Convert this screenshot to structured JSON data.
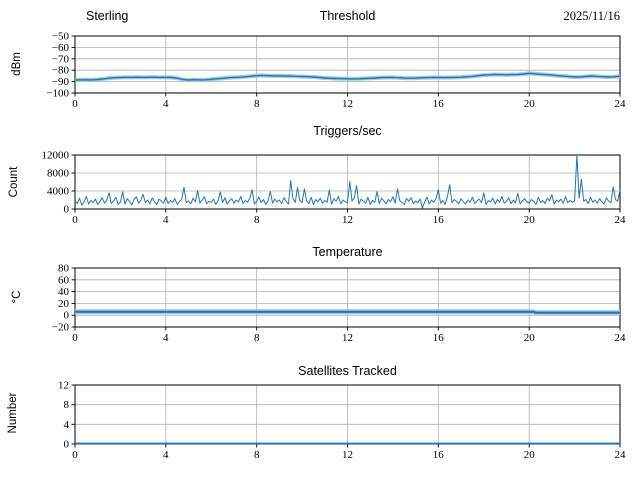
{
  "figure": {
    "background": "#ffffff",
    "grid_color": "#b0b0b0",
    "spine_color": "#000000"
  },
  "chart_data": [
    {
      "id": "threshold",
      "type": "line",
      "title_left": "Sterling",
      "title_center": "Threshold",
      "title_right": "2025/11/16",
      "ylabel": "dBm",
      "xlim": [
        0,
        24
      ],
      "ylim": [
        -100,
        -50
      ],
      "xticks": [
        0,
        4,
        8,
        12,
        16,
        20,
        24
      ],
      "xtick_labels": [
        "0",
        "4",
        "8",
        "12",
        "16",
        "20",
        "24"
      ],
      "ytick_vals": [
        -50,
        -60,
        -70,
        -80,
        -90,
        -100
      ],
      "ytick_labels": [
        "−50",
        "−60",
        "−70",
        "−80",
        "−90",
        "−100"
      ],
      "grid": true,
      "legend": "none",
      "line_color": "#1f77b4",
      "band_color": "#a5c9e1",
      "series": [
        {
          "name": "threshold_dbm",
          "x_start": 0,
          "x_step": 0.25,
          "width": 1.4,
          "band": 4,
          "values": [
            -88.6,
            -88.5,
            -88.4,
            -88.5,
            -88.2,
            -87.6,
            -87.0,
            -86.6,
            -86.4,
            -86.2,
            -86.3,
            -86.1,
            -86.3,
            -86.2,
            -86.1,
            -86.3,
            -86.2,
            -86.4,
            -87.0,
            -88.2,
            -88.6,
            -88.3,
            -88.5,
            -88.4,
            -88.0,
            -87.5,
            -87.1,
            -86.6,
            -86.3,
            -86.1,
            -85.8,
            -85.3,
            -84.8,
            -84.6,
            -84.8,
            -85.0,
            -84.9,
            -85.1,
            -85.2,
            -85.4,
            -85.5,
            -85.7,
            -86.0,
            -86.4,
            -86.8,
            -87.1,
            -87.3,
            -87.4,
            -87.5,
            -87.6,
            -87.5,
            -87.3,
            -87.1,
            -86.8,
            -86.5,
            -86.4,
            -86.3,
            -86.6,
            -86.9,
            -87.0,
            -86.9,
            -86.7,
            -86.5,
            -86.4,
            -86.3,
            -86.5,
            -86.4,
            -86.3,
            -86.1,
            -85.8,
            -85.4,
            -84.8,
            -84.3,
            -84.0,
            -83.8,
            -83.9,
            -84.0,
            -83.9,
            -83.8,
            -83.3,
            -82.7,
            -83.2,
            -83.6,
            -83.9,
            -84.3,
            -84.8,
            -85.2,
            -85.6,
            -86.0,
            -85.9,
            -85.5,
            -85.2,
            -85.4,
            -85.7,
            -86.0,
            -85.8,
            -85.3
          ]
        }
      ]
    },
    {
      "id": "triggers",
      "type": "line",
      "title_center": "Triggers/sec",
      "ylabel": "Count",
      "xlim": [
        0,
        24
      ],
      "ylim": [
        0,
        12000
      ],
      "xticks": [
        0,
        4,
        8,
        12,
        16,
        20,
        24
      ],
      "xtick_labels": [
        "0",
        "4",
        "8",
        "12",
        "16",
        "20",
        "24"
      ],
      "ytick_vals": [
        0,
        4000,
        8000,
        12000
      ],
      "ytick_labels": [
        "0",
        "4000",
        "8000",
        "12000"
      ],
      "grid": true,
      "legend": "none",
      "line_color": "#1f77b4",
      "band_color": "#a5c9e1",
      "series": [
        {
          "name": "triggers_per_sec",
          "x_start": 0,
          "x_step": 0.1,
          "width": 1,
          "band": 0,
          "values": [
            1800,
            1200,
            2400,
            900,
            1600,
            2800,
            1100,
            1900,
            1400,
            2200,
            1000,
            1700,
            2500,
            1300,
            2000,
            3600,
            1200,
            1800,
            2600,
            1000,
            1500,
            3800,
            1100,
            2300,
            1700,
            900,
            2100,
            2700,
            1300,
            1900,
            3300,
            1400,
            2000,
            1100,
            2500,
            1600,
            1000,
            2200,
            1800,
            1300,
            2600,
            1200,
            1900,
            1500,
            2300,
            1000,
            1700,
            2100,
            4800,
            1400,
            1800,
            1100,
            2400,
            1600,
            4100,
            1300,
            2000,
            2700,
            1200,
            1700,
            1500,
            2200,
            1000,
            1900,
            3800,
            1400,
            2500,
            1100,
            1800,
            2300,
            1300,
            2000,
            1600,
            2800,
            1200,
            1900,
            1500,
            2400,
            4300,
            1100,
            1700,
            2600,
            1400,
            2100,
            1000,
            1800,
            3900,
            1300,
            2200,
            1600,
            2000,
            1200,
            2500,
            1700,
            1100,
            6300,
            2300,
            1500,
            4800,
            1900,
            1400,
            4500,
            1800,
            1200,
            2600,
            1000,
            2100,
            1600,
            2400,
            1300,
            1900,
            1500,
            4200,
            1100,
            2300,
            1700,
            2800,
            1200,
            2000,
            1600,
            1400,
            6100,
            1800,
            2500,
            5200,
            1100,
            2200,
            1700,
            1300,
            2600,
            1000,
            1900,
            1500,
            3900,
            1200,
            2400,
            1800,
            1100,
            2100,
            1600,
            2700,
            1300,
            4500,
            1900,
            1500,
            1000,
            2300,
            1700,
            2500,
            1200,
            1800,
            1400,
            2200,
            200,
            1600,
            2600,
            1100,
            2000,
            1500,
            2400,
            4300,
            1300,
            1900,
            1000,
            2700,
            5400,
            1400,
            2100,
            1700,
            1200,
            2300,
            1600,
            1100,
            2000,
            1500,
            2600,
            1200,
            1800,
            2200,
            1400,
            3600,
            1000,
            1900,
            1600,
            2400,
            1100,
            2100,
            1500,
            2800,
            1300,
            1700,
            2500,
            1200,
            2000,
            1400,
            3500,
            1100,
            1800,
            2300,
            1600,
            1300,
            2100,
            1700,
            1000,
            2600,
            1500,
            1900,
            1200,
            2400,
            1800,
            3200,
            1100,
            2000,
            1600,
            2200,
            1300,
            2700,
            1400,
            1900,
            1500,
            1800,
            12300,
            2400,
            6600,
            1700,
            2100,
            1200,
            2600,
            1500,
            2000,
            1300,
            2300,
            1600,
            1100,
            2500,
            1800,
            1400,
            4900,
            2100,
            1700,
            4200
          ]
        }
      ]
    },
    {
      "id": "temperature",
      "type": "line",
      "title_center": "Temperature",
      "ylabel": "°C",
      "xlim": [
        0,
        24
      ],
      "ylim": [
        -20,
        80
      ],
      "xticks": [
        0,
        4,
        8,
        12,
        16,
        20,
        24
      ],
      "xtick_labels": [
        "0",
        "4",
        "8",
        "12",
        "16",
        "20",
        "24"
      ],
      "ytick_vals": [
        80,
        60,
        40,
        20,
        0,
        -20
      ],
      "ytick_labels": [
        "80",
        "60",
        "40",
        "20",
        "0",
        "−20"
      ],
      "grid": true,
      "legend": "none",
      "line_color": "#1f77b4",
      "band_color": "#a5c9e1",
      "series": [
        {
          "name": "temperature_c",
          "width": 2.2,
          "band": 5,
          "points": [
            [
              0,
              5.8
            ],
            [
              20.2,
              5.8
            ],
            [
              20.3,
              4.3
            ],
            [
              24,
              4.3
            ]
          ]
        }
      ]
    },
    {
      "id": "satellites",
      "type": "line",
      "title_center": "Satellites Tracked",
      "ylabel": "Number",
      "xlim": [
        0,
        24
      ],
      "ylim": [
        0,
        12
      ],
      "xticks": [
        0,
        4,
        8,
        12,
        16,
        20,
        24
      ],
      "xtick_labels": [
        "0",
        "4",
        "8",
        "12",
        "16",
        "20",
        "24"
      ],
      "ytick_vals": [
        0,
        4,
        8,
        12
      ],
      "ytick_labels": [
        "0",
        "4",
        "8",
        "12"
      ],
      "grid": true,
      "legend": "none",
      "line_color": "#1f77b4",
      "band_color": "#a5c9e1",
      "series": [
        {
          "name": "satellites_tracked",
          "width": 1.8,
          "band": 0,
          "points": [
            [
              0,
              0.1
            ],
            [
              24,
              0.1
            ]
          ]
        }
      ]
    }
  ]
}
